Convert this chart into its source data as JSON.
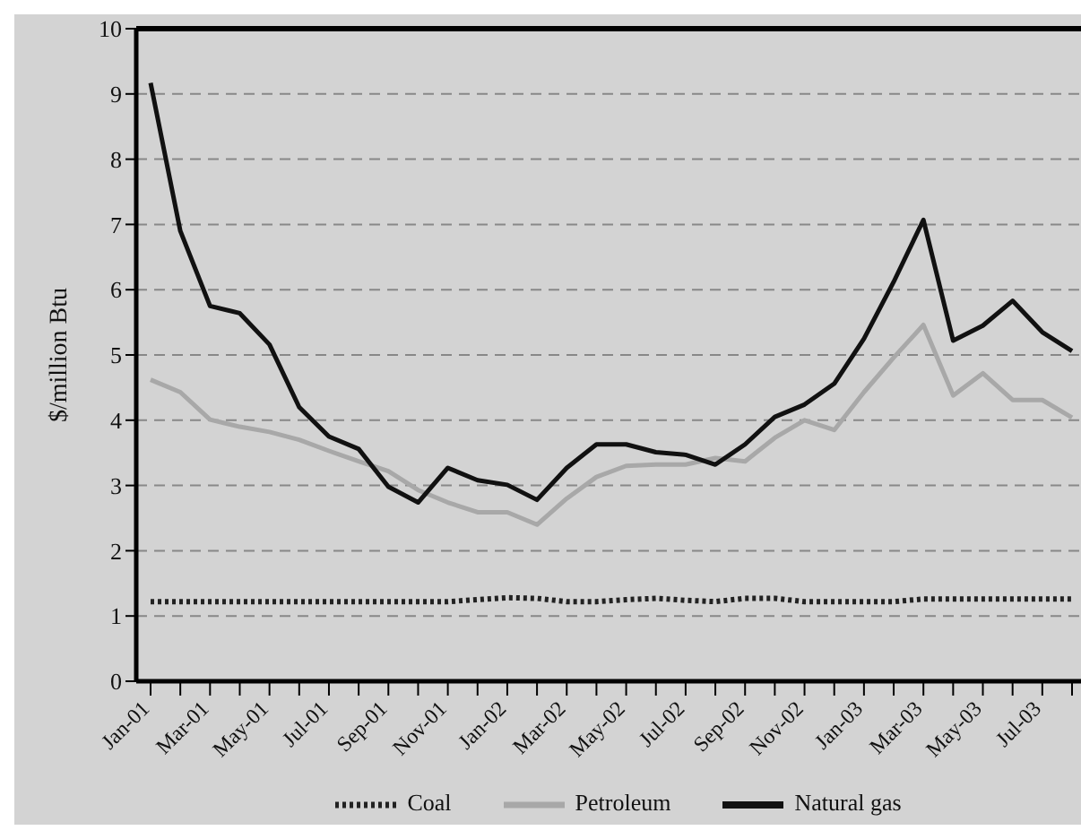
{
  "chart_data": {
    "type": "line",
    "ylabel": "$/million Btu",
    "categories": [
      "Jan-01",
      null,
      "Mar-01",
      null,
      "May-01",
      null,
      "Jul-01",
      null,
      "Sep-01",
      null,
      "Nov-01",
      null,
      "Jan-02",
      null,
      "Mar-02",
      null,
      "May-02",
      null,
      "Jul-02",
      null,
      "Sep-02",
      null,
      "Nov-02",
      null,
      "Jan-03",
      null,
      "Mar-03",
      null,
      "May-03",
      null,
      "Jul-03",
      null
    ],
    "series": [
      {
        "name": "Coal",
        "color": "#222222",
        "line_style": "dotted",
        "values": [
          1.22,
          1.22,
          1.22,
          1.22,
          1.22,
          1.22,
          1.22,
          1.22,
          1.22,
          1.22,
          1.22,
          1.25,
          1.28,
          1.27,
          1.22,
          1.22,
          1.25,
          1.27,
          1.24,
          1.22,
          1.27,
          1.27,
          1.22,
          1.22,
          1.22,
          1.22,
          1.26,
          1.26,
          1.26,
          1.26,
          1.26,
          1.26
        ]
      },
      {
        "name": "Petroleum",
        "color": "#a8a8a8",
        "line_style": "solid",
        "values": [
          4.62,
          4.43,
          4.01,
          3.9,
          3.82,
          3.7,
          3.53,
          3.37,
          3.22,
          2.93,
          2.74,
          2.59,
          2.59,
          2.4,
          2.8,
          3.13,
          3.3,
          3.32,
          3.32,
          3.42,
          3.37,
          3.73,
          4.0,
          3.85,
          4.43,
          4.96,
          5.46,
          4.38,
          4.72,
          4.31,
          4.31,
          4.04
        ]
      },
      {
        "name": "Natural gas",
        "color": "#111111",
        "line_style": "solid",
        "values": [
          9.17,
          6.9,
          5.75,
          5.64,
          5.16,
          4.2,
          3.75,
          3.56,
          2.98,
          2.74,
          3.27,
          3.08,
          3.01,
          2.78,
          3.27,
          3.63,
          3.63,
          3.51,
          3.47,
          3.32,
          3.63,
          4.05,
          4.24,
          4.56,
          5.25,
          6.12,
          7.07,
          5.22,
          5.45,
          5.83,
          5.35,
          5.06
        ]
      }
    ],
    "ylim": [
      0,
      10
    ],
    "yticks": [
      0,
      1,
      2,
      3,
      4,
      5,
      6,
      7,
      8,
      9,
      10
    ],
    "grid": "y",
    "legend": "bottom",
    "marker": "none"
  }
}
